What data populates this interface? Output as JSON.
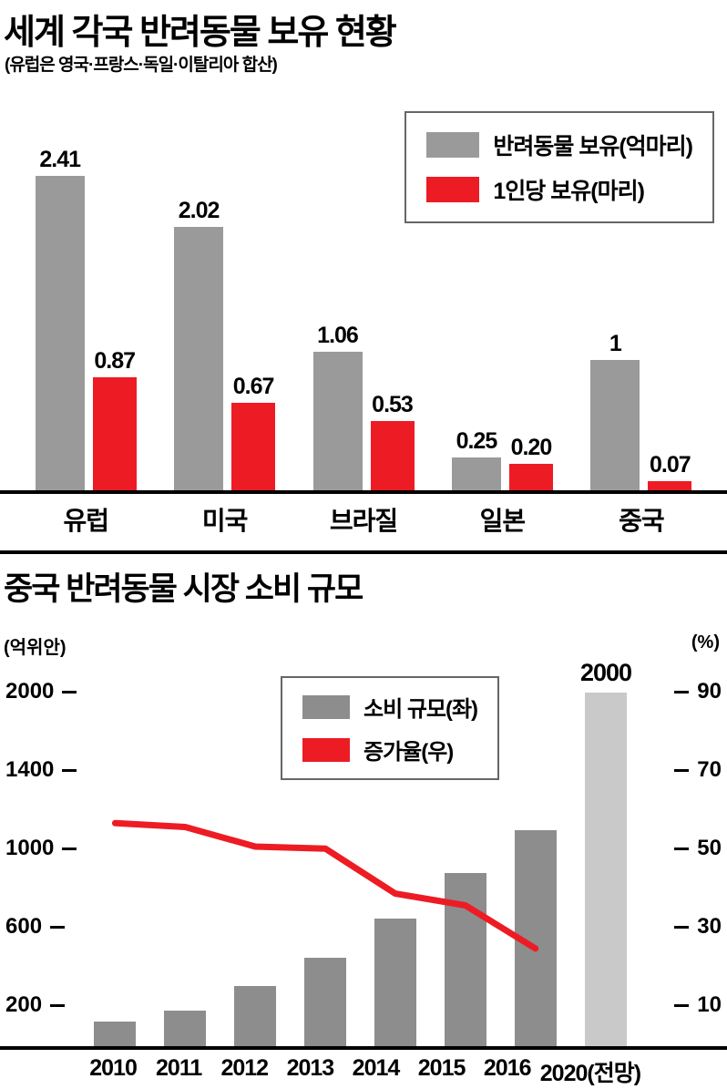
{
  "colors": {
    "gray_bar": "#9a9a9a",
    "red": "#ed1c24",
    "dark_bar": "#8d8d8d",
    "forecast_bar": "#c9c9c9",
    "axis": "#000000"
  },
  "chart_data": [
    {
      "type": "bar",
      "title": "세계 각국 반려동물 보유 현황",
      "subtitle": "(유럽은 영국·프랑스·독일·이탈리아 합산)",
      "categories": [
        "유럽",
        "미국",
        "브라질",
        "일본",
        "중국"
      ],
      "series": [
        {
          "name": "반려동물 보유(억마리)",
          "color": "#9a9a9a",
          "values": [
            2.41,
            2.02,
            1.06,
            0.25,
            1
          ],
          "labels": [
            "2.41",
            "2.02",
            "1.06",
            "0.25",
            "1"
          ]
        },
        {
          "name": "1인당 보유(마리)",
          "color": "#ed1c24",
          "values": [
            0.87,
            0.67,
            0.53,
            0.2,
            0.07
          ],
          "labels": [
            "0.87",
            "0.67",
            "0.53",
            "0.20",
            "0.07"
          ]
        }
      ],
      "legend_position": "top-right",
      "grid": false
    },
    {
      "type": "bar+line",
      "title": "중국 반려동물 시장 소비 규모",
      "categories": [
        "2010",
        "2011",
        "2012",
        "2013",
        "2014",
        "2015",
        "2016",
        "2020(전망)"
      ],
      "left_axis": {
        "unit": "(억위안)",
        "ticks": [
          "2000",
          "1400",
          "1000",
          "600",
          "200"
        ],
        "range_top": 2000
      },
      "right_axis": {
        "unit": "(%)",
        "ticks": [
          "90",
          "70",
          "50",
          "30",
          "10"
        ],
        "range": [
          10,
          90
        ]
      },
      "bars": {
        "name": "소비 규모(좌)",
        "values": [
          140,
          200,
          340,
          500,
          720,
          980,
          1220,
          2000
        ],
        "forecast_index": 7,
        "forecast_label": "2000"
      },
      "line": {
        "name": "증가율(우)",
        "values": [
          56,
          55,
          50,
          49.5,
          38,
          35,
          24
        ]
      },
      "legend_position": "top-center",
      "grid": false
    }
  ]
}
